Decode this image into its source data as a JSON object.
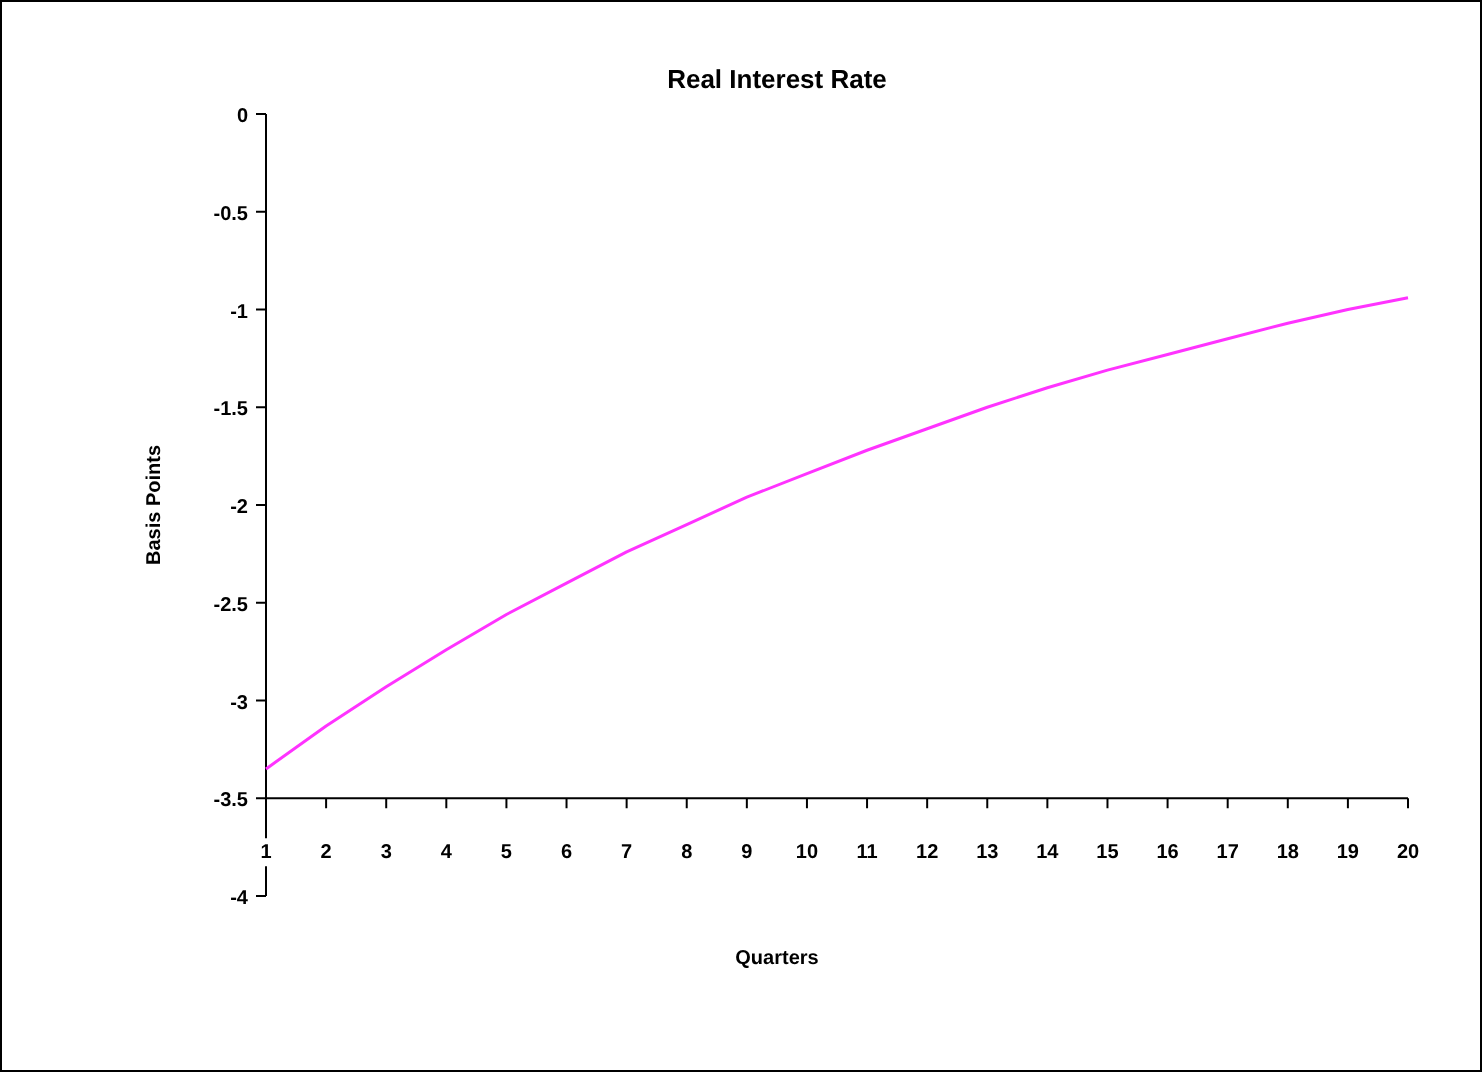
{
  "chart_data": {
    "type": "line",
    "title": "Real Interest Rate",
    "xlabel": "Quarters",
    "ylabel": "Basis Points",
    "x": [
      1,
      2,
      3,
      4,
      5,
      6,
      7,
      8,
      9,
      10,
      11,
      12,
      13,
      14,
      15,
      16,
      17,
      18,
      19,
      20
    ],
    "series": [
      {
        "color": "#ff33ff",
        "values": [
          -3.35,
          -3.13,
          -2.93,
          -2.74,
          -2.56,
          -2.4,
          -2.24,
          -2.1,
          -1.96,
          -1.84,
          -1.72,
          -1.61,
          -1.5,
          -1.4,
          -1.31,
          -1.23,
          -1.15,
          -1.07,
          -1.0,
          -0.94
        ]
      }
    ],
    "xlim": [
      1,
      20
    ],
    "xticks": [
      1,
      2,
      3,
      4,
      5,
      6,
      7,
      8,
      9,
      10,
      11,
      12,
      13,
      14,
      15,
      16,
      17,
      18,
      19,
      20
    ],
    "ylim": [
      -4,
      0
    ],
    "yticks": [
      -4,
      -3.5,
      -3,
      -2.5,
      -2,
      -1.5,
      -1,
      -0.5,
      0
    ],
    "grid": false,
    "marker": "none",
    "line_style": "solid"
  }
}
